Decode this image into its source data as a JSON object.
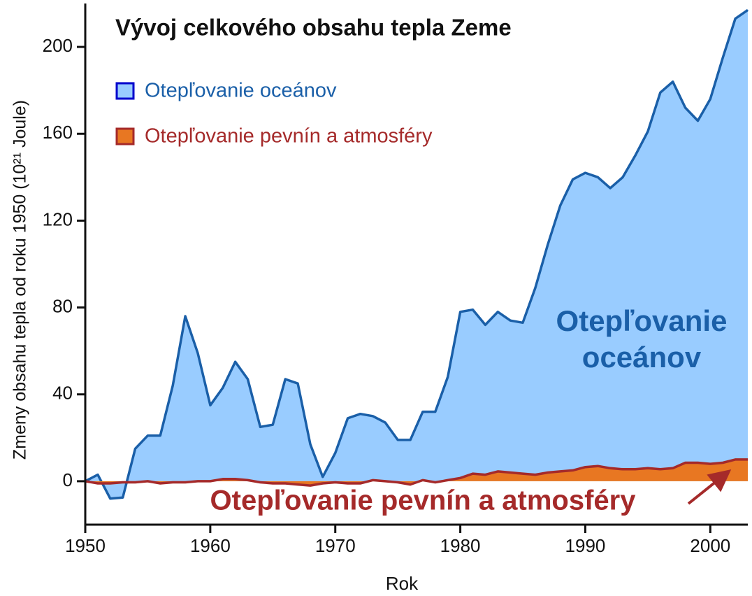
{
  "chart_data": {
    "type": "area",
    "title": "Vývoj celkového obsahu tepla Zeme",
    "x_label": "Rok",
    "y_label": "Zmeny obsahu tepla od roku 1950 (10²¹ Joule)",
    "x": [
      1950,
      1951,
      1952,
      1953,
      1954,
      1955,
      1956,
      1957,
      1958,
      1959,
      1960,
      1961,
      1962,
      1963,
      1964,
      1965,
      1966,
      1967,
      1968,
      1969,
      1970,
      1971,
      1972,
      1973,
      1974,
      1975,
      1976,
      1977,
      1978,
      1979,
      1980,
      1981,
      1982,
      1983,
      1984,
      1985,
      1986,
      1987,
      1988,
      1989,
      1990,
      1991,
      1992,
      1993,
      1994,
      1995,
      1996,
      1997,
      1998,
      1999,
      2000,
      2001,
      2002,
      2003
    ],
    "series": [
      {
        "name": "Otepľovanie oceánov",
        "color": "#99ccff",
        "line_color": "#1a5fa8",
        "values": [
          0,
          3,
          -8,
          -7.5,
          15,
          21,
          21,
          44,
          76,
          59,
          35,
          43,
          55,
          47,
          25,
          26,
          47,
          45,
          17,
          2,
          13,
          29,
          31,
          30,
          27,
          19,
          19,
          32,
          32,
          48,
          78,
          79,
          72,
          78,
          74,
          73,
          89,
          109,
          127,
          139,
          142,
          140,
          135,
          140,
          150,
          161,
          179,
          184,
          172,
          166,
          176,
          195,
          213,
          217
        ]
      },
      {
        "name": "Otepľovanie pevnín a atmosféry",
        "color": "#e87722",
        "line_color": "#a52a2a",
        "values": [
          0,
          -1,
          -1,
          -0.5,
          -0.5,
          0,
          -1,
          -0.5,
          -0.5,
          0,
          0,
          1,
          1,
          0.5,
          -0.5,
          -1,
          -1,
          -1.5,
          -2,
          -1,
          -0.5,
          -1,
          -1,
          0.5,
          0,
          -0.5,
          -1.5,
          0.5,
          -0.5,
          0.5,
          1.5,
          3.5,
          3,
          4.5,
          4,
          3.5,
          3,
          4,
          4.5,
          5,
          6.5,
          7,
          6,
          5.5,
          5.5,
          6,
          5.5,
          6,
          8.5,
          8.5,
          8,
          8.5,
          10,
          10
        ]
      }
    ],
    "annotations": [
      [
        "Otepľovanie",
        "oceánov"
      ],
      [
        "Otepľovanie pevnín a atmosféry"
      ]
    ],
    "xlim": [
      1950,
      2003
    ],
    "xticks": [
      1950,
      1960,
      1970,
      1980,
      1990,
      2000
    ],
    "ylim": [
      -20,
      220
    ],
    "yticks": [
      0,
      40,
      80,
      120,
      160,
      200
    ],
    "legend": "top-left"
  }
}
